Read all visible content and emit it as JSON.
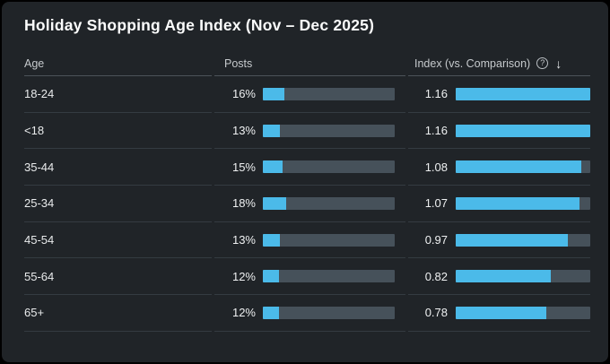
{
  "title": "Holiday Shopping Age Index (Nov – Dec 2025)",
  "colors": {
    "accent": "#4bbae9",
    "track": "#46515a",
    "card_bg": "#202428"
  },
  "table": {
    "headers": {
      "age": "Age",
      "posts": "Posts",
      "index": "Index (vs. Comparison)"
    },
    "icons": {
      "help_glyph": "?",
      "sort_glyph": "↓"
    },
    "index_max": 1.16,
    "rows": [
      {
        "age": "18-24",
        "posts_pct": "16%",
        "posts_value": 16,
        "index": "1.16",
        "index_value": 1.16
      },
      {
        "age": "<18",
        "posts_pct": "13%",
        "posts_value": 13,
        "index": "1.16",
        "index_value": 1.16
      },
      {
        "age": "35-44",
        "posts_pct": "15%",
        "posts_value": 15,
        "index": "1.08",
        "index_value": 1.08
      },
      {
        "age": "25-34",
        "posts_pct": "18%",
        "posts_value": 18,
        "index": "1.07",
        "index_value": 1.07
      },
      {
        "age": "45-54",
        "posts_pct": "13%",
        "posts_value": 13,
        "index": "0.97",
        "index_value": 0.97
      },
      {
        "age": "55-64",
        "posts_pct": "12%",
        "posts_value": 12,
        "index": "0.82",
        "index_value": 0.82
      },
      {
        "age": "65+",
        "posts_pct": "12%",
        "posts_value": 12,
        "index": "0.78",
        "index_value": 0.78
      }
    ]
  },
  "chart_data": {
    "type": "table",
    "title": "Holiday Shopping Age Index (Nov – Dec 2025)",
    "columns": [
      "Age",
      "Posts",
      "Index (vs. Comparison)"
    ],
    "rows": [
      [
        "18-24",
        "16%",
        1.16
      ],
      [
        "<18",
        "13%",
        1.16
      ],
      [
        "35-44",
        "15%",
        1.08
      ],
      [
        "25-34",
        "18%",
        1.07
      ],
      [
        "45-54",
        "13%",
        0.97
      ],
      [
        "55-64",
        "12%",
        0.82
      ],
      [
        "65+",
        "12%",
        0.78
      ]
    ],
    "sort": {
      "column": "Index (vs. Comparison)",
      "direction": "desc"
    },
    "bar_scale": {
      "posts_bar_max_pct": 100,
      "index_bar_max": 1.16
    }
  }
}
